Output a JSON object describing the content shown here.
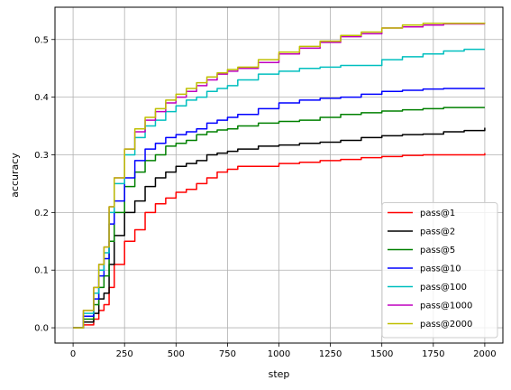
{
  "chart_data": {
    "type": "line",
    "title": "",
    "xlabel": "step",
    "ylabel": "accuracy",
    "xlim": [
      -88,
      2088
    ],
    "ylim": [
      -0.0265,
      0.556
    ],
    "xticks": [
      0,
      250,
      500,
      750,
      1000,
      1250,
      1500,
      1750,
      2000
    ],
    "yticks": [
      0.0,
      0.1,
      0.2,
      0.3,
      0.4,
      0.5
    ],
    "ytick_labels": [
      "0.0",
      "0.1",
      "0.2",
      "0.3",
      "0.4",
      "0.5"
    ],
    "grid": true,
    "legend_position": "lower-right",
    "series": [
      {
        "name": "pass@1",
        "color": "#ff0000",
        "x": [
          0,
          50,
          100,
          125,
          150,
          175,
          200,
          250,
          300,
          350,
          400,
          450,
          500,
          550,
          600,
          650,
          700,
          750,
          800,
          900,
          1000,
          1100,
          1200,
          1300,
          1400,
          1500,
          1600,
          1700,
          1800,
          1900,
          2000
        ],
        "y": [
          0.0,
          0.005,
          0.015,
          0.03,
          0.04,
          0.07,
          0.11,
          0.15,
          0.17,
          0.2,
          0.215,
          0.225,
          0.235,
          0.24,
          0.25,
          0.26,
          0.27,
          0.275,
          0.28,
          0.28,
          0.285,
          0.287,
          0.29,
          0.292,
          0.295,
          0.297,
          0.299,
          0.3,
          0.3,
          0.3,
          0.303
        ]
      },
      {
        "name": "pass@2",
        "color": "#000000",
        "x": [
          0,
          50,
          100,
          125,
          150,
          175,
          200,
          250,
          300,
          350,
          400,
          450,
          500,
          550,
          600,
          650,
          700,
          750,
          800,
          900,
          1000,
          1100,
          1200,
          1300,
          1400,
          1500,
          1600,
          1700,
          1800,
          1900,
          2000
        ],
        "y": [
          0.0,
          0.01,
          0.025,
          0.05,
          0.06,
          0.11,
          0.16,
          0.2,
          0.22,
          0.245,
          0.26,
          0.27,
          0.28,
          0.285,
          0.29,
          0.3,
          0.303,
          0.306,
          0.31,
          0.315,
          0.317,
          0.32,
          0.322,
          0.325,
          0.33,
          0.333,
          0.335,
          0.336,
          0.34,
          0.342,
          0.347
        ]
      },
      {
        "name": "pass@5",
        "color": "#008000",
        "x": [
          0,
          50,
          100,
          125,
          150,
          175,
          200,
          250,
          300,
          350,
          400,
          450,
          500,
          550,
          600,
          650,
          700,
          750,
          800,
          900,
          1000,
          1100,
          1200,
          1300,
          1400,
          1500,
          1600,
          1700,
          1800,
          1900,
          2000
        ],
        "y": [
          0.0,
          0.015,
          0.04,
          0.07,
          0.09,
          0.15,
          0.2,
          0.245,
          0.27,
          0.29,
          0.3,
          0.315,
          0.32,
          0.325,
          0.335,
          0.34,
          0.343,
          0.345,
          0.35,
          0.355,
          0.358,
          0.36,
          0.365,
          0.37,
          0.373,
          0.376,
          0.378,
          0.38,
          0.382,
          0.382,
          0.382
        ]
      },
      {
        "name": "pass@10",
        "color": "#0000ff",
        "x": [
          0,
          50,
          100,
          125,
          150,
          175,
          200,
          250,
          300,
          350,
          400,
          450,
          500,
          550,
          600,
          650,
          700,
          750,
          800,
          900,
          1000,
          1100,
          1200,
          1300,
          1400,
          1500,
          1600,
          1700,
          1800,
          1900,
          2000
        ],
        "y": [
          0.0,
          0.02,
          0.05,
          0.09,
          0.12,
          0.18,
          0.22,
          0.26,
          0.29,
          0.31,
          0.32,
          0.33,
          0.335,
          0.34,
          0.345,
          0.355,
          0.36,
          0.365,
          0.37,
          0.38,
          0.39,
          0.395,
          0.398,
          0.4,
          0.405,
          0.41,
          0.412,
          0.414,
          0.415,
          0.415,
          0.415
        ]
      },
      {
        "name": "pass@100",
        "color": "#00bfbf",
        "x": [
          0,
          50,
          100,
          125,
          150,
          175,
          200,
          250,
          300,
          350,
          400,
          450,
          500,
          550,
          600,
          650,
          700,
          750,
          800,
          900,
          1000,
          1100,
          1200,
          1300,
          1400,
          1500,
          1600,
          1700,
          1800,
          1900,
          2000
        ],
        "y": [
          0.0,
          0.025,
          0.06,
          0.1,
          0.13,
          0.2,
          0.25,
          0.3,
          0.33,
          0.35,
          0.36,
          0.375,
          0.385,
          0.395,
          0.4,
          0.41,
          0.415,
          0.42,
          0.43,
          0.44,
          0.445,
          0.45,
          0.452,
          0.455,
          0.455,
          0.465,
          0.47,
          0.475,
          0.48,
          0.483,
          0.483
        ]
      },
      {
        "name": "pass@1000",
        "color": "#bf00bf",
        "x": [
          0,
          50,
          100,
          125,
          150,
          175,
          200,
          250,
          300,
          350,
          400,
          450,
          500,
          550,
          600,
          650,
          700,
          750,
          800,
          900,
          1000,
          1100,
          1200,
          1300,
          1400,
          1500,
          1600,
          1700,
          1800,
          1900,
          2000
        ],
        "y": [
          0.0,
          0.03,
          0.07,
          0.11,
          0.14,
          0.21,
          0.26,
          0.31,
          0.34,
          0.36,
          0.375,
          0.39,
          0.4,
          0.41,
          0.42,
          0.43,
          0.44,
          0.445,
          0.45,
          0.46,
          0.475,
          0.485,
          0.495,
          0.505,
          0.51,
          0.52,
          0.522,
          0.525,
          0.527,
          0.527,
          0.527
        ]
      },
      {
        "name": "pass@2000",
        "color": "#bfbf00",
        "x": [
          0,
          50,
          100,
          125,
          150,
          175,
          200,
          250,
          300,
          350,
          400,
          450,
          500,
          550,
          600,
          650,
          700,
          750,
          800,
          900,
          1000,
          1100,
          1200,
          1300,
          1400,
          1500,
          1600,
          1700,
          1800,
          1900,
          2000
        ],
        "y": [
          0.0,
          0.03,
          0.07,
          0.11,
          0.14,
          0.21,
          0.26,
          0.31,
          0.345,
          0.365,
          0.38,
          0.395,
          0.405,
          0.415,
          0.425,
          0.435,
          0.442,
          0.448,
          0.452,
          0.465,
          0.478,
          0.488,
          0.497,
          0.507,
          0.513,
          0.52,
          0.525,
          0.528,
          0.528,
          0.528,
          0.529
        ]
      }
    ]
  }
}
